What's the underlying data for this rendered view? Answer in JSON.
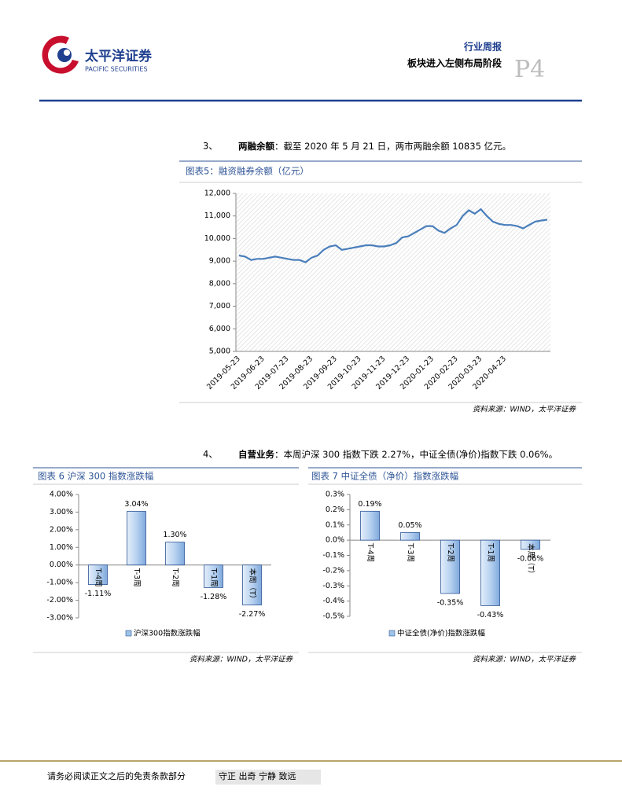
{
  "header": {
    "logo_cn": "太平洋证券",
    "logo_en": "PACIFIC SECURITIES",
    "report_type": "行业周报",
    "report_title": "板块进入左侧布局阶段",
    "page": "P4"
  },
  "sections": [
    {
      "number": "3、",
      "heading": "两融余额",
      "text": "：截至 2020 年 5 月 21 日，两市两融余额 10835 亿元。"
    },
    {
      "number": "4、",
      "heading": "自营业务",
      "text": "：本周沪深 300 指数下跌 2.27%，中证全债(净价)指数下跌 0.06%。"
    }
  ],
  "chart_data": [
    {
      "type": "line",
      "title": "图表5：融资融券余额（亿元）",
      "source": "资料来源：WIND，太平洋证券",
      "color": "#4a7ebb",
      "categories": [
        "2019-05-23",
        null,
        null,
        null,
        "2019-06-23",
        null,
        null,
        null,
        "2019-07-23",
        null,
        null,
        null,
        "2019-08-23",
        null,
        null,
        null,
        "2019-09-23",
        null,
        null,
        null,
        "2019-10-23",
        null,
        null,
        null,
        "2019-11-23",
        null,
        null,
        null,
        "2019-12-23",
        null,
        null,
        null,
        "2020-01-23",
        null,
        null,
        null,
        "2020-02-23",
        null,
        null,
        null,
        "2020-03-23",
        null,
        null,
        null,
        "2020-04-23",
        null,
        null,
        null,
        null,
        null,
        null,
        null
      ],
      "values": [
        9250,
        9200,
        9050,
        9100,
        9100,
        9150,
        9200,
        9150,
        9100,
        9050,
        9050,
        8950,
        9150,
        9250,
        9500,
        9650,
        9700,
        9500,
        9550,
        9600,
        9650,
        9700,
        9700,
        9650,
        9650,
        9700,
        9800,
        10050,
        10100,
        10250,
        10400,
        10550,
        10550,
        10350,
        10250,
        10450,
        10600,
        11000,
        11250,
        11100,
        11300,
        11000,
        10750,
        10650,
        10600,
        10600,
        10550,
        10450,
        10600,
        10750,
        10800,
        10835
      ],
      "ylim": [
        5000,
        12000
      ],
      "yticks": [
        {
          "value": 5000,
          "label": "5,000"
        },
        {
          "value": 6000,
          "label": "6,000"
        },
        {
          "value": 7000,
          "label": "7,000"
        },
        {
          "value": 8000,
          "label": "8,000"
        },
        {
          "value": 9000,
          "label": "9,000"
        },
        {
          "value": 10000,
          "label": "10,000"
        },
        {
          "value": 11000,
          "label": "11,000"
        },
        {
          "value": 12000,
          "label": "12,000"
        }
      ]
    },
    {
      "type": "bar",
      "title": "图表 6 沪深 300 指数涨跌幅",
      "source": "资料来源：WIND，太平洋证券",
      "categories": [
        "T-4周",
        "T-3周",
        "T-2周",
        "T-1周",
        "本周（T）"
      ],
      "series": [
        {
          "name": "沪深300指数涨跌幅",
          "color": "#9dc3e6",
          "values": [
            -1.11,
            3.04,
            1.3,
            -1.28,
            -2.27
          ],
          "value_labels": [
            "-1.11%",
            "3.04%",
            "1.30%",
            "-1.28%",
            "-2.27%"
          ]
        }
      ],
      "ylim": [
        -3,
        4
      ],
      "yticks": [
        {
          "value": -3,
          "label": "-3.00%"
        },
        {
          "value": -2,
          "label": "-2.00%"
        },
        {
          "value": -1,
          "label": "-1.00%"
        },
        {
          "value": 0,
          "label": "0.00%"
        },
        {
          "value": 1,
          "label": "1.00%"
        },
        {
          "value": 2,
          "label": "2.00%"
        },
        {
          "value": 3,
          "label": "3.00%"
        },
        {
          "value": 4,
          "label": "4.00%"
        }
      ]
    },
    {
      "type": "bar",
      "title": "图表 7 中证全债（净价）指数涨跌幅",
      "source": "资料来源：WIND，太平洋证券",
      "categories": [
        "T-4周",
        "T-3周",
        "T-2周",
        "T-1周",
        "本周（T）"
      ],
      "series": [
        {
          "name": "中证全债(净价)指数涨跌幅",
          "color": "#9dc3e6",
          "values": [
            0.19,
            0.05,
            -0.35,
            -0.43,
            -0.06
          ],
          "value_labels": [
            "0.19%",
            "0.05%",
            "-0.35%",
            "-0.43%",
            "-0.06%"
          ]
        }
      ],
      "ylim": [
        -0.5,
        0.3
      ],
      "yticks": [
        {
          "value": -0.5,
          "label": "-0.5%"
        },
        {
          "value": -0.4,
          "label": "-0.4%"
        },
        {
          "value": -0.3,
          "label": "-0.3%"
        },
        {
          "value": -0.2,
          "label": "-0.2%"
        },
        {
          "value": -0.1,
          "label": "-0.1%"
        },
        {
          "value": 0,
          "label": "0.0%"
        },
        {
          "value": 0.1,
          "label": "0.1%"
        },
        {
          "value": 0.2,
          "label": "0.2%"
        },
        {
          "value": 0.3,
          "label": "0.3%"
        }
      ]
    }
  ],
  "footer": {
    "disclaimer": "请务必阅读正文之后的免责条款部分",
    "motto": "守正 出奇 宁静 致远"
  }
}
